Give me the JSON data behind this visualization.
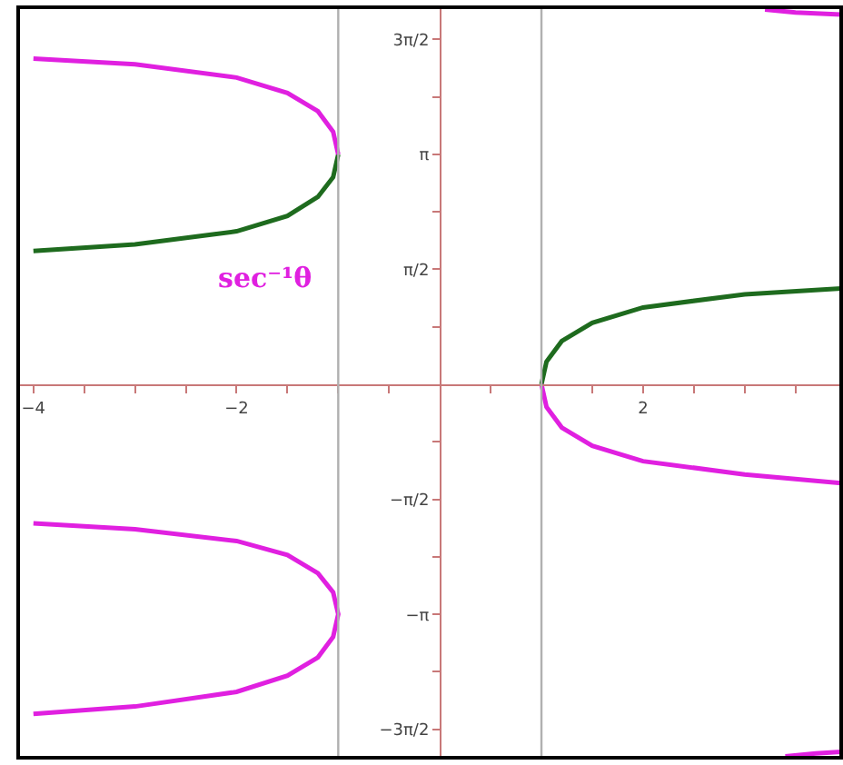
{
  "chart_data": {
    "type": "line",
    "xlim": [
      -4.15,
      3.95
    ],
    "ylim": [
      -5.1,
      5.15
    ],
    "xticks": [
      -4,
      {
        "value": -3.5,
        "label": null
      },
      {
        "value": -3,
        "label": null
      },
      {
        "value": -2.5,
        "label": null
      },
      -2,
      {
        "value": -1.5,
        "label": null
      },
      {
        "value": -1,
        "label": null
      },
      {
        "value": -0.5,
        "label": null
      },
      {
        "value": 0.5,
        "label": null
      },
      {
        "value": 1,
        "label": null
      },
      {
        "value": 1.5,
        "label": null
      },
      2,
      {
        "value": 2.5,
        "label": null
      },
      {
        "value": 3,
        "label": null
      },
      {
        "value": 3.5,
        "label": null
      }
    ],
    "yticks": [
      {
        "value": -4.712,
        "label": "−3π/2"
      },
      {
        "value": -3.927,
        "label": null
      },
      {
        "value": -3.142,
        "label": "−π"
      },
      {
        "value": -2.356,
        "label": null
      },
      {
        "value": -1.571,
        "label": "−π/2"
      },
      {
        "value": -0.785,
        "label": null
      },
      {
        "value": 0.785,
        "label": null
      },
      {
        "value": 1.571,
        "label": "π/2"
      },
      {
        "value": 2.356,
        "label": null
      },
      {
        "value": 3.142,
        "label": "π"
      },
      {
        "value": 3.927,
        "label": null
      },
      {
        "value": 4.712,
        "label": "3π/2"
      }
    ],
    "grid": false,
    "marker": "none",
    "line_style": "solid",
    "ref_lines": [
      {
        "axis": "x",
        "value": -1,
        "color": "#b0b0b0"
      },
      {
        "axis": "x",
        "value": 1,
        "color": "#b0b0b0"
      }
    ],
    "annotations": [
      "sec⁻¹θ"
    ],
    "series": [
      {
        "color": "#1e6b1e",
        "x": [
          -4,
          -3,
          -2,
          -1.5,
          -1.2,
          -1.05,
          -1
        ],
        "values": [
          1.82,
          1.91,
          2.09,
          2.3,
          2.56,
          2.83,
          3.14
        ]
      },
      {
        "color": "#e020e0",
        "x": [
          -4,
          -3,
          -2,
          -1.5,
          -1.2,
          -1.05,
          -1
        ],
        "values": [
          4.45,
          4.37,
          4.19,
          3.98,
          3.73,
          3.45,
          3.14
        ]
      },
      {
        "color": "#e020e0",
        "x": [
          -4,
          -3,
          -2,
          -1.5,
          -1.2,
          -1.05,
          -1,
          -1.05,
          -1.2,
          -1.5,
          -2,
          -3,
          -4
        ],
        "values": [
          -1.9,
          -1.98,
          -2.14,
          -2.33,
          -2.58,
          -2.84,
          -3.14,
          -3.45,
          -3.73,
          -3.98,
          -4.2,
          -4.4,
          -4.5
        ]
      },
      {
        "color": "#1e6b1e",
        "x": [
          1,
          1.05,
          1.2,
          1.5,
          2,
          3,
          3.95
        ],
        "values": [
          0,
          0.31,
          0.59,
          0.84,
          1.05,
          1.23,
          1.31
        ]
      },
      {
        "color": "#e020e0",
        "x": [
          1,
          1.05,
          1.2,
          1.5,
          2,
          3,
          3.95
        ],
        "values": [
          0,
          -0.31,
          -0.59,
          -0.84,
          -1.05,
          -1.23,
          -1.35
        ]
      },
      {
        "color": "#e020e0",
        "x": [
          3.2,
          3.5,
          3.95
        ],
        "values": [
          5.12,
          5.08,
          5.05
        ]
      },
      {
        "color": "#e020e0",
        "x": [
          3.4,
          3.7,
          3.95
        ],
        "values": [
          -5.08,
          -5.04,
          -5.02
        ]
      }
    ]
  }
}
